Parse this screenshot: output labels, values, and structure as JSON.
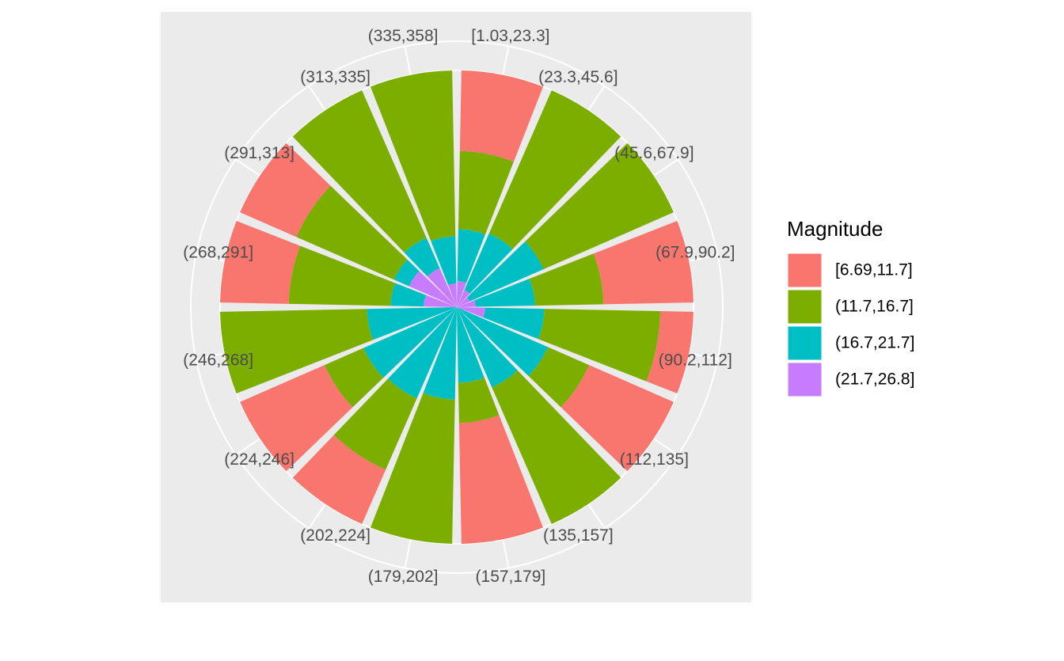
{
  "chart_data": {
    "type": "bar",
    "polar": true,
    "stacked": true,
    "categories": [
      "[1.03,23.3]",
      "(23.3,45.6]",
      "(45.6,67.9]",
      "(67.9,90.2]",
      "(90.2,112]",
      "(112,135]",
      "(135,157]",
      "(157,179]",
      "(179,202]",
      "(202,224]",
      "(224,246]",
      "(246,268]",
      "(268,291]",
      "(291,313]",
      "(313,335]",
      "(335,358]"
    ],
    "legend_title": "Magnitude",
    "series": [
      {
        "name": "[6.69,11.7]",
        "color": "#F8766D",
        "values": [
          0.34,
          0,
          0,
          0.38,
          0.14,
          0.39,
          0,
          0.51,
          0,
          0.25,
          0.39,
          0,
          0.29,
          0.26,
          0,
          0
        ]
      },
      {
        "name": "(11.7,16.7]",
        "color": "#7CAE00",
        "values": [
          0.33,
          0.66,
          0.6,
          0.29,
          0.49,
          0.19,
          0.63,
          0.17,
          0.61,
          0.33,
          0.18,
          0.62,
          0.43,
          0.45,
          0.68,
          0.7
        ]
      },
      {
        "name": "(16.7,21.7]",
        "color": "#00BFC4",
        "values": [
          0.22,
          0.26,
          0.34,
          0.25,
          0.25,
          0.42,
          0.37,
          0.32,
          0.39,
          0.42,
          0.43,
          0.38,
          0.14,
          0.07,
          0.14,
          0.2
        ]
      },
      {
        "name": "(21.7,26.8]",
        "color": "#C77CFF",
        "values": [
          0.11,
          0.08,
          0.06,
          0.08,
          0.12,
          0,
          0,
          0,
          0,
          0,
          0,
          0,
          0.14,
          0.22,
          0.18,
          0.1
        ]
      }
    ]
  }
}
